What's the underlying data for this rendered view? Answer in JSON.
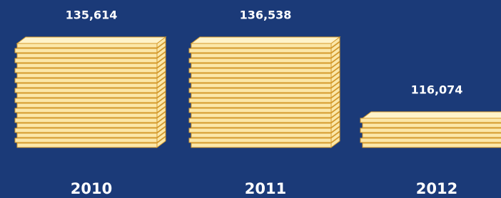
{
  "chart_data": {
    "type": "bar",
    "categories": [
      "2010",
      "2011",
      "2012"
    ],
    "values": [
      135614,
      136538,
      116074
    ],
    "value_labels": [
      "135,614",
      "136,538",
      "116,074"
    ],
    "color": "#fbe7a8"
  }
}
